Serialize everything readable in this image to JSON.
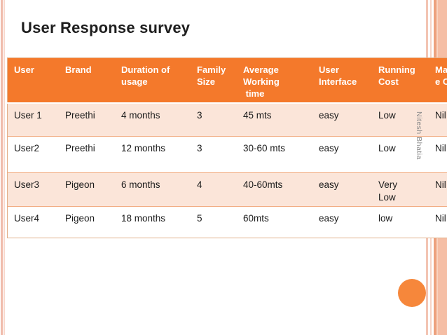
{
  "slide": {
    "title": "User Response survey",
    "watermark": "Nitesh Bhatia"
  },
  "table": {
    "headers": [
      "User",
      "Brand",
      "Duration of\nusage",
      "Family\nSize",
      "Average\nWorking\n time",
      "User\nInterface",
      "Running\nCost",
      "Maintenanc\ne Cost"
    ],
    "rows": [
      [
        "User 1",
        "Preethi",
        "4 months",
        "3",
        "45 mts",
        "easy",
        "Low",
        "Nil"
      ],
      [
        "User2",
        "Preethi",
        "12 months",
        "3",
        "30-60 mts",
        "easy",
        "Low",
        "Nil"
      ],
      [
        "User3",
        "Pigeon",
        "6 months",
        "4",
        "40-60mts",
        "easy",
        "Very\nLow",
        "Nil"
      ],
      [
        "User4",
        "Pigeon",
        "18 months",
        "5",
        "60mts",
        "easy",
        "low",
        "Nil"
      ]
    ]
  },
  "colors": {
    "header_orange": "#F4792B",
    "row_pink": "#FBE5D9",
    "circle_orange": "#F6873B",
    "stripe_salmon": "#EDA17D",
    "band_salmon": "#F5BEA5",
    "title_text": "#1E1E1E",
    "header_text": "#FFFFFF",
    "body_text": "#1A1A1A",
    "watermark_gray": "#8B8B8B"
  }
}
